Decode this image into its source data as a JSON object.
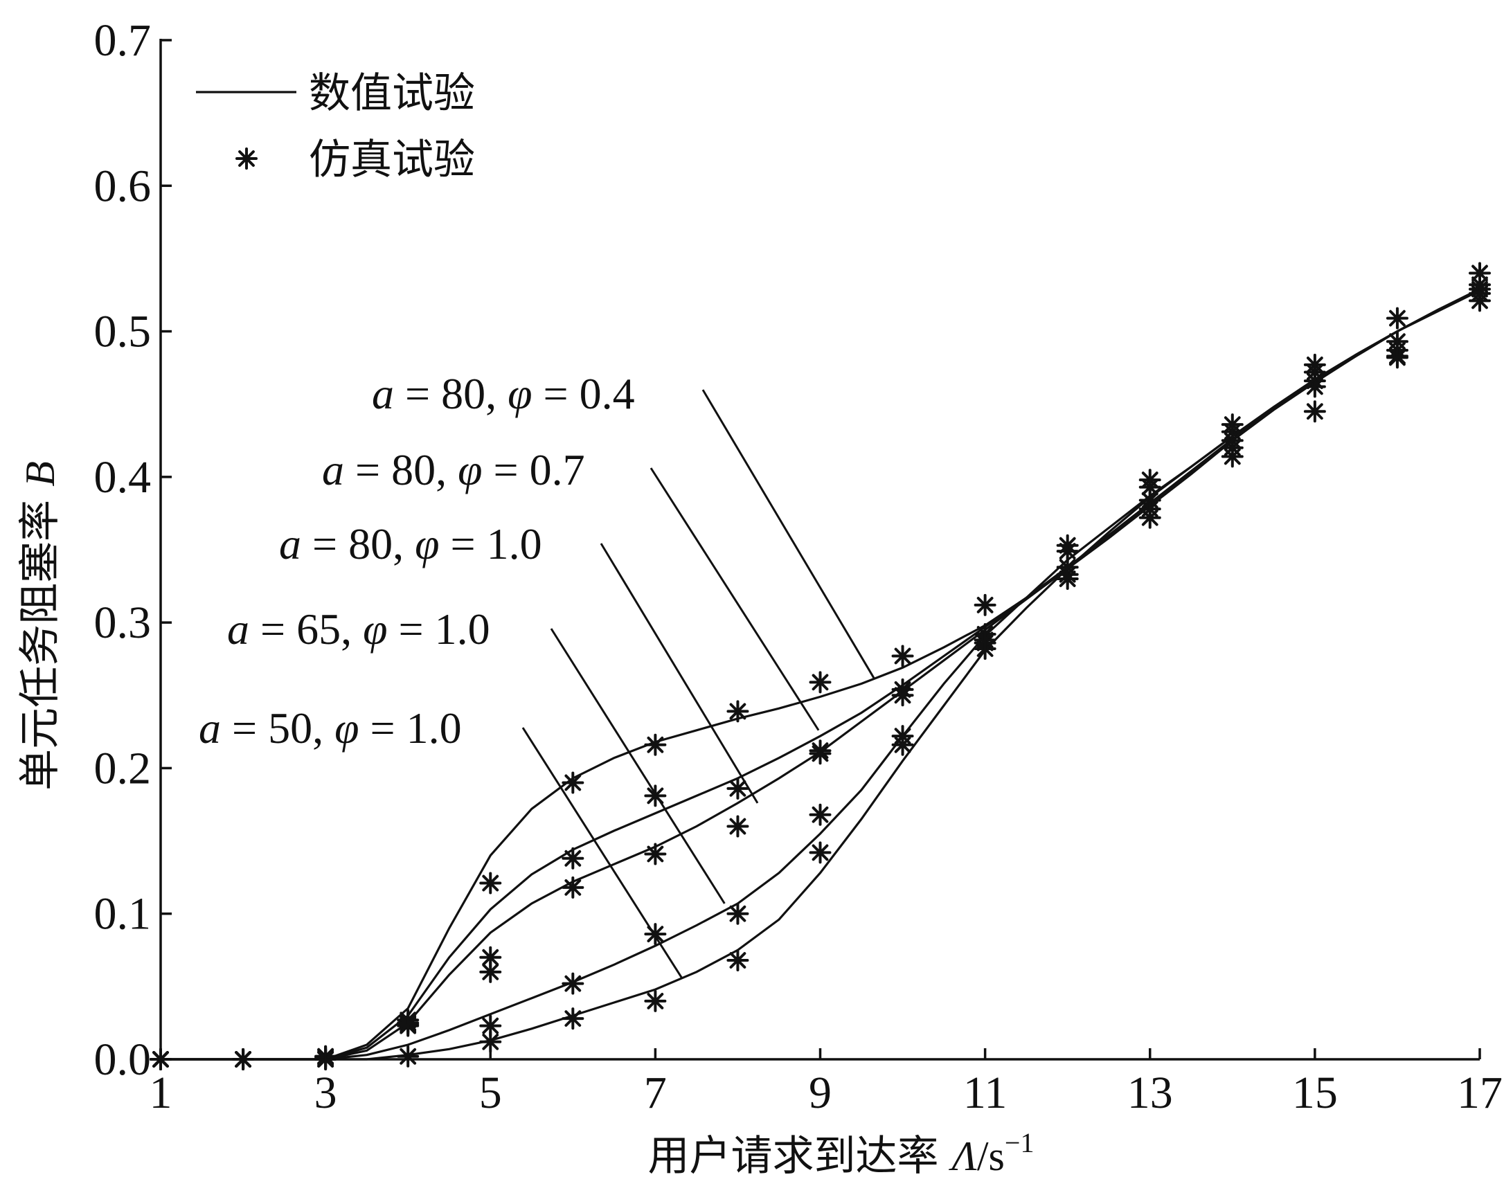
{
  "chart_data": {
    "type": "line",
    "xlabel": "用户请求到达率 Λ/s⁻¹",
    "xlabel_parts": {
      "text": "用户请求到达率 ",
      "symbol": "Λ",
      "unit": "/s",
      "exp": "−1"
    },
    "ylabel": "单元任务阻塞率 B",
    "ylabel_parts": {
      "text": "单元任务阻塞率 ",
      "symbol": "B"
    },
    "xlim": [
      1,
      17
    ],
    "ylim": [
      0.0,
      0.7
    ],
    "xticks": [
      1,
      3,
      5,
      7,
      9,
      11,
      13,
      15,
      17
    ],
    "yticks": [
      "0.0",
      "0.1",
      "0.2",
      "0.3",
      "0.4",
      "0.5",
      "0.6",
      "0.7"
    ],
    "grid": false,
    "legend": {
      "placement": "top-left",
      "entries": [
        {
          "marker": "line",
          "label": "数值试验"
        },
        {
          "marker": "star",
          "label": "仿真试验"
        }
      ]
    },
    "series": [
      {
        "name": "a = 80, φ = 0.4",
        "label_parts": {
          "a_sym": "a",
          "a_val": " = 80, ",
          "phi_sym": "φ",
          "phi_val": " = 0.4"
        },
        "label_anchor": [
          9.65,
          0.262
        ],
        "x": [
          1,
          2,
          3,
          3.5,
          4,
          4.5,
          5,
          5.5,
          6,
          6.5,
          7,
          7.5,
          8,
          8.5,
          9,
          9.5,
          10,
          10.5,
          11,
          11.5,
          12,
          12.5,
          13,
          13.5,
          14,
          14.5,
          15,
          15.5,
          16,
          16.5,
          17
        ],
        "y": [
          0.0,
          0.0,
          0.0,
          0.01,
          0.035,
          0.09,
          0.14,
          0.172,
          0.193,
          0.207,
          0.218,
          0.226,
          0.234,
          0.241,
          0.249,
          0.258,
          0.269,
          0.283,
          0.298,
          0.317,
          0.337,
          0.358,
          0.38,
          0.402,
          0.425,
          0.447,
          0.466,
          0.483,
          0.5,
          0.514,
          0.528
        ],
        "sim_x": [
          1,
          2,
          3,
          4,
          5,
          6,
          7,
          8,
          9,
          10,
          11,
          12,
          13,
          14,
          15,
          16,
          17
        ],
        "sim_y": [
          0.0,
          0.0,
          0.002,
          0.027,
          0.121,
          0.19,
          0.216,
          0.239,
          0.259,
          0.277,
          0.312,
          0.353,
          0.398,
          0.436,
          0.477,
          0.509,
          0.54
        ]
      },
      {
        "name": "a = 80, φ = 0.7",
        "label_parts": {
          "a_sym": "a",
          "a_val": " = 80, ",
          "phi_sym": "φ",
          "phi_val": " = 0.7"
        },
        "label_anchor": [
          8.98,
          0.226
        ],
        "x": [
          1,
          2,
          3,
          3.5,
          4,
          4.5,
          5,
          5.5,
          6,
          6.5,
          7,
          7.5,
          8,
          8.5,
          9,
          9.5,
          10,
          10.5,
          11,
          11.5,
          12,
          12.5,
          13,
          13.5,
          14,
          14.5,
          15,
          15.5,
          16,
          16.5,
          17
        ],
        "y": [
          0.0,
          0.0,
          0.0,
          0.008,
          0.03,
          0.07,
          0.103,
          0.127,
          0.144,
          0.157,
          0.169,
          0.181,
          0.193,
          0.207,
          0.222,
          0.238,
          0.257,
          0.277,
          0.297,
          0.317,
          0.338,
          0.36,
          0.382,
          0.404,
          0.426,
          0.447,
          0.466,
          0.484,
          0.5,
          0.515,
          0.529
        ],
        "sim_x": [
          1,
          2,
          3,
          4,
          5,
          6,
          7,
          8,
          9,
          10,
          11,
          12,
          13,
          14,
          15,
          16,
          17
        ],
        "sim_y": [
          0.0,
          0.0,
          0.002,
          0.025,
          0.07,
          0.138,
          0.181,
          0.186,
          0.212,
          0.254,
          0.292,
          0.349,
          0.393,
          0.431,
          0.472,
          0.493,
          0.532
        ]
      },
      {
        "name": "a = 80, φ = 1.0",
        "label_parts": {
          "a_sym": "a",
          "a_val": " = 80, ",
          "phi_sym": "φ",
          "phi_val": " = 1.0"
        },
        "label_anchor": [
          8.24,
          0.176
        ],
        "x": [
          1,
          2,
          3,
          3.5,
          4,
          4.5,
          5,
          5.5,
          6,
          6.5,
          7,
          7.5,
          8,
          8.5,
          9,
          9.5,
          10,
          10.5,
          11,
          11.5,
          12,
          12.5,
          13,
          13.5,
          14,
          14.5,
          15,
          15.5,
          16,
          16.5,
          17
        ],
        "y": [
          0.0,
          0.0,
          0.0,
          0.006,
          0.025,
          0.058,
          0.087,
          0.107,
          0.122,
          0.134,
          0.146,
          0.16,
          0.176,
          0.193,
          0.211,
          0.232,
          0.253,
          0.274,
          0.295,
          0.316,
          0.337,
          0.359,
          0.381,
          0.403,
          0.425,
          0.446,
          0.465,
          0.483,
          0.5,
          0.515,
          0.528
        ],
        "sim_x": [
          1,
          2,
          3,
          4,
          5,
          6,
          7,
          8,
          9,
          10,
          11,
          12,
          13,
          14,
          15,
          16,
          17
        ],
        "sim_y": [
          0.0,
          0.0,
          0.001,
          0.023,
          0.06,
          0.118,
          0.141,
          0.16,
          0.21,
          0.25,
          0.286,
          0.338,
          0.378,
          0.42,
          0.466,
          0.487,
          0.526
        ]
      },
      {
        "name": "a = 65, φ = 1.0",
        "label_parts": {
          "a_sym": "a",
          "a_val": " = 65, ",
          "phi_sym": "φ",
          "phi_val": " = 1.0"
        },
        "label_anchor": [
          7.84,
          0.107
        ],
        "x": [
          1,
          2,
          3,
          3.5,
          4,
          4.5,
          5,
          5.5,
          6,
          6.5,
          7,
          7.5,
          8,
          8.5,
          9,
          9.5,
          10,
          10.5,
          11,
          11.5,
          12,
          12.5,
          13,
          13.5,
          14,
          14.5,
          15,
          15.5,
          16,
          16.5,
          17
        ],
        "y": [
          0.0,
          0.0,
          0.0,
          0.003,
          0.01,
          0.02,
          0.031,
          0.042,
          0.053,
          0.065,
          0.078,
          0.092,
          0.107,
          0.128,
          0.155,
          0.185,
          0.222,
          0.258,
          0.291,
          0.317,
          0.343,
          0.365,
          0.387,
          0.407,
          0.428,
          0.448,
          0.467,
          0.484,
          0.5,
          0.515,
          0.529
        ],
        "sim_x": [
          1,
          2,
          3,
          4,
          5,
          6,
          7,
          8,
          9,
          10,
          11,
          12,
          13,
          14,
          15,
          16,
          17
        ],
        "sim_y": [
          0.0,
          0.0,
          0.0,
          0.024,
          0.023,
          0.052,
          0.086,
          0.1,
          0.168,
          0.222,
          0.282,
          0.333,
          0.384,
          0.425,
          0.462,
          0.483,
          0.529
        ]
      },
      {
        "name": "a = 50, φ = 1.0",
        "label_parts": {
          "a_sym": "a",
          "a_val": " = 50, ",
          "phi_sym": "φ",
          "phi_val": " = 1.0"
        },
        "label_anchor": [
          7.32,
          0.056
        ],
        "x": [
          1,
          2,
          3,
          3.5,
          4,
          4.5,
          5,
          5.5,
          6,
          6.5,
          7,
          7.5,
          8,
          8.5,
          9,
          9.5,
          10,
          10.5,
          11,
          11.5,
          12,
          12.5,
          13,
          13.5,
          14,
          14.5,
          15,
          15.5,
          16,
          16.5,
          17
        ],
        "y": [
          0.0,
          0.0,
          0.0,
          0.0,
          0.003,
          0.007,
          0.013,
          0.021,
          0.03,
          0.039,
          0.048,
          0.06,
          0.075,
          0.096,
          0.128,
          0.165,
          0.205,
          0.243,
          0.281,
          0.31,
          0.337,
          0.362,
          0.386,
          0.407,
          0.428,
          0.448,
          0.467,
          0.484,
          0.5,
          0.515,
          0.528
        ],
        "sim_x": [
          1,
          2,
          3,
          4,
          5,
          6,
          7,
          8,
          9,
          10,
          11,
          12,
          13,
          14,
          15,
          16,
          17
        ],
        "sim_y": [
          0.0,
          0.0,
          0.0,
          0.002,
          0.012,
          0.028,
          0.04,
          0.068,
          0.142,
          0.216,
          0.288,
          0.33,
          0.372,
          0.414,
          0.445,
          0.482,
          0.521
        ]
      }
    ]
  }
}
